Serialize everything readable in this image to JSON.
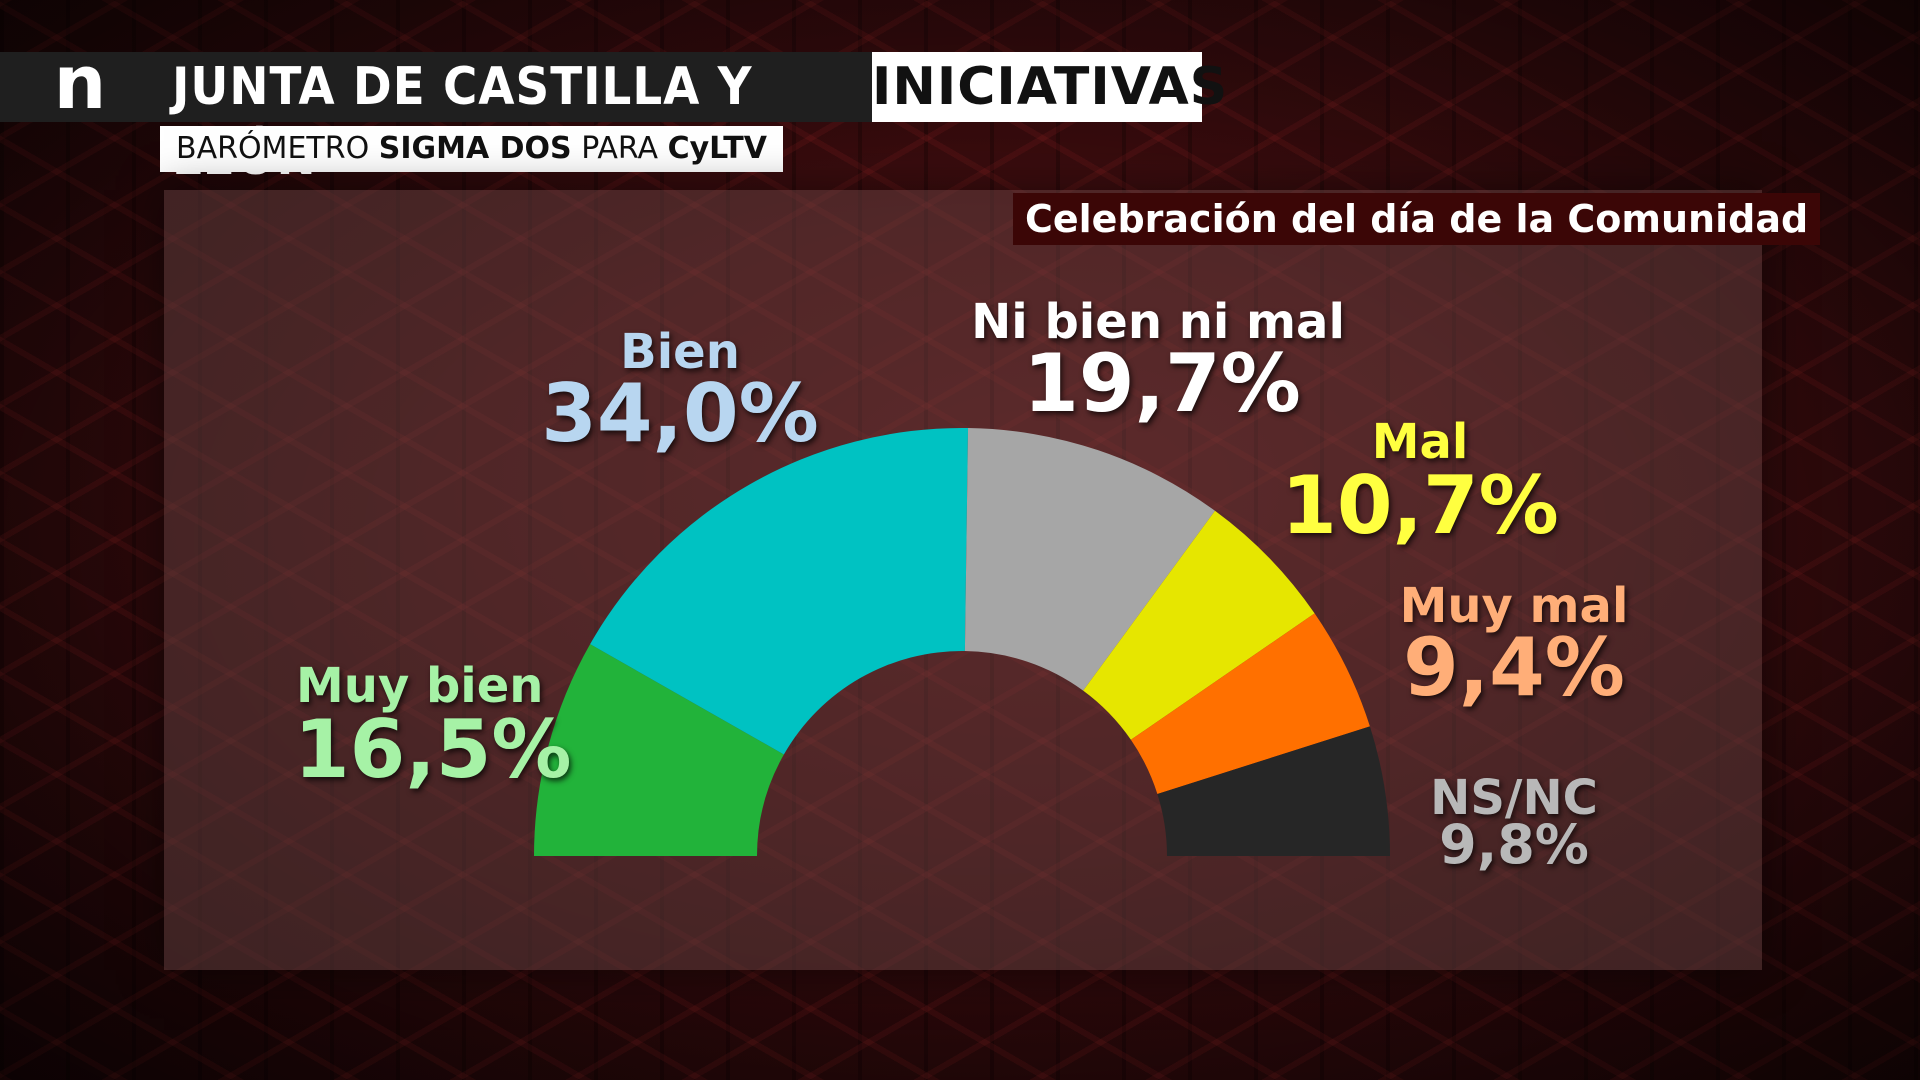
{
  "header": {
    "logo": "n",
    "title": "JUNTA DE CASTILLA Y LEÓN",
    "tag": "INICIATIVAS",
    "subtitle_parts": [
      "BARÓMETRO ",
      "SIGMA DOS",
      " PARA ",
      "CyLTV"
    ]
  },
  "chart_data": {
    "type": "pie",
    "title": "Celebración del día de la Comunidad",
    "shape": "semicircle-donut",
    "series": [
      {
        "name": "Muy bien",
        "value": 16.5,
        "label": "16,5%",
        "color": "#22b33a",
        "label_color": "#a6f2a6"
      },
      {
        "name": "Bien",
        "value": 34.0,
        "label": "34,0%",
        "color": "#00c2c2",
        "label_color": "#b8d6f0"
      },
      {
        "name": "Ni bien ni mal",
        "value": 19.7,
        "label": "19,7%",
        "color": "#a6a6a6",
        "label_color": "#ffffff"
      },
      {
        "name": "Mal",
        "value": 10.7,
        "label": "10,7%",
        "color": "#e6e600",
        "label_color": "#ffff40"
      },
      {
        "name": "Muy mal",
        "value": 9.4,
        "label": "9,4%",
        "color": "#ff7000",
        "label_color": "#ffae78"
      },
      {
        "name": "NS/NC",
        "value": 9.8,
        "label": "9,8%",
        "color": "#262626",
        "label_color": "#b8b8b8"
      }
    ]
  }
}
